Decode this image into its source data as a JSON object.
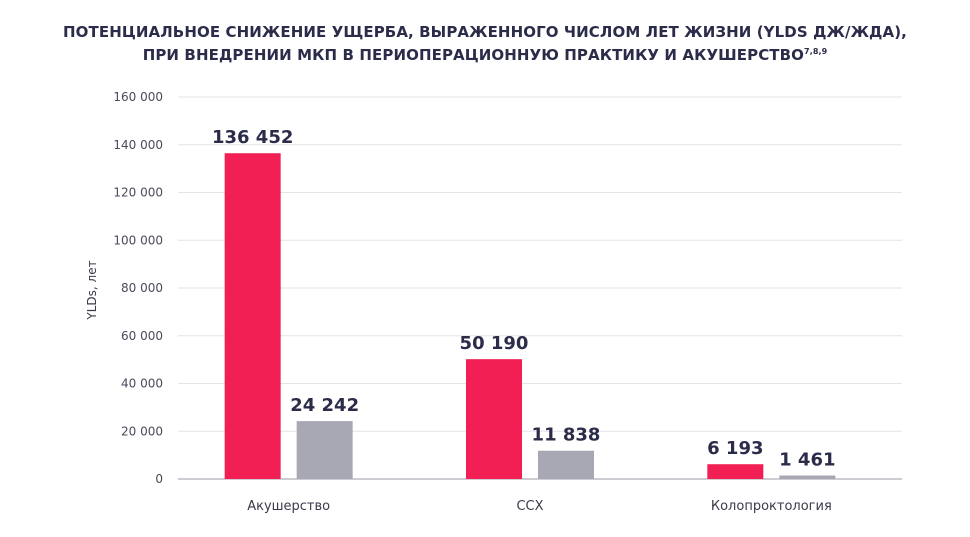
{
  "title": {
    "line1": "ПОТЕНЦИАЛЬНОЕ СНИЖЕНИЕ УЩЕРБА, ВЫРАЖЕННОГО ЧИСЛОМ ЛЕТ ЖИЗНИ (YLDS ДЖ/ЖДА),",
    "line2": "ПРИ ВНЕДРЕНИИ МКП В ПЕРИОПЕРАЦИОННУЮ ПРАКТИКУ И АКУШЕРСТВО",
    "refs": "7,8,9"
  },
  "chart_data": {
    "type": "bar",
    "categories": [
      "Акушерство",
      "ССХ",
      "Колопроктология"
    ],
    "series": [
      {
        "values": [
          136452,
          50190,
          6193
        ],
        "labels": [
          "136 452",
          "50 190",
          "6 193"
        ],
        "color": "#f21f55"
      },
      {
        "values": [
          24242,
          11838,
          1461
        ],
        "labels": [
          "24 242",
          "11 838",
          "1 461"
        ],
        "color": "#a8a8b4"
      }
    ],
    "ylabel": "YLDs, лет",
    "ylim": [
      0,
      160000
    ],
    "yticks": [
      0,
      20000,
      40000,
      60000,
      80000,
      100000,
      120000,
      140000,
      160000
    ],
    "ytick_labels": [
      "0",
      "20 000",
      "40 000",
      "60 000",
      "80 000",
      "100 000",
      "120 000",
      "140 000",
      "160 000"
    ],
    "grid": true
  }
}
